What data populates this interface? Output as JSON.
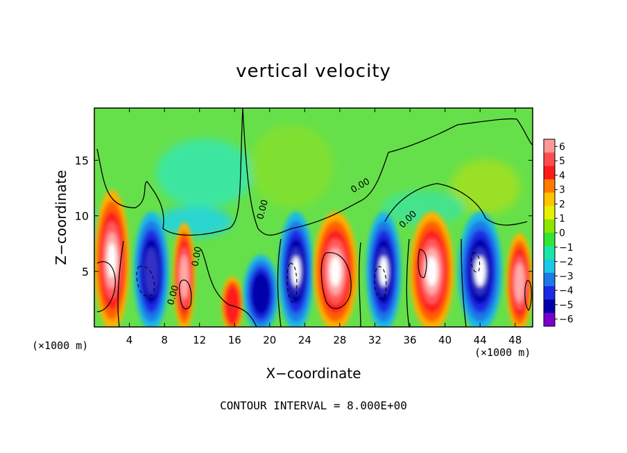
{
  "chart_data": {
    "type": "heatmap",
    "title": "vertical velocity",
    "xlabel": "X−coordinate",
    "ylabel": "Z−coordinate",
    "x_unit_label": "(×1000 m)",
    "x_ticks": [
      4,
      8,
      12,
      16,
      20,
      24,
      28,
      32,
      36,
      40,
      44,
      48
    ],
    "y_ticks": [
      5,
      10,
      15
    ],
    "xlim": [
      0,
      50
    ],
    "ylim": [
      0,
      19.7
    ],
    "contour_interval_label": "CONTOUR INTERVAL = 8.000E+00",
    "contour_labels": [
      "0.00",
      "0.00",
      "0.00",
      "0.00",
      "0.00"
    ],
    "colorbar": {
      "ticks": [
        6,
        5,
        4,
        3,
        2,
        1,
        0,
        -1,
        -2,
        -3,
        -4,
        -5,
        -6
      ],
      "tick_labels": [
        "6",
        "5",
        "4",
        "3",
        "2",
        "1",
        "0",
        "−1",
        "−2",
        "−3",
        "−4",
        "−5",
        "−6"
      ],
      "colors": [
        "#ff9999",
        "#ff4d4d",
        "#ff1a1a",
        "#ff7a00",
        "#ffc400",
        "#e6f000",
        "#8ce600",
        "#33e633",
        "#19e6a6",
        "#19c8e6",
        "#1e7ae6",
        "#1a2ae6",
        "#0000aa",
        "#7a00cc"
      ]
    },
    "cells": [
      {
        "x0": 0,
        "x1": 4,
        "w": 6.5,
        "z": 6,
        "color": "#ff1a1a"
      },
      {
        "x0": 4.5,
        "x1": 8.5,
        "w": -5,
        "z": 5,
        "color": "#1a2ae6"
      },
      {
        "x0": 9,
        "x1": 11.5,
        "w": 5,
        "z": 4.5,
        "color": "#ff1a1a"
      },
      {
        "x0": 14.5,
        "x1": 17,
        "w": 3,
        "z": 2,
        "color": "#ff7a00"
      },
      {
        "x0": 17,
        "x1": 21,
        "w": -4,
        "z": 3,
        "color": "#1e7ae6"
      },
      {
        "x0": 21,
        "x1": 25,
        "w": -6,
        "z": 5,
        "color": "#1a2ae6"
      },
      {
        "x0": 25,
        "x1": 30,
        "w": 6.5,
        "z": 5,
        "color": "#ff1a1a"
      },
      {
        "x0": 31,
        "x1": 35,
        "w": -5.5,
        "z": 5,
        "color": "#1a2ae6"
      },
      {
        "x0": 36,
        "x1": 41,
        "w": 6,
        "z": 5,
        "color": "#ff1a1a"
      },
      {
        "x0": 41.5,
        "x1": 46.5,
        "w": -5.5,
        "z": 5,
        "color": "#1a2ae6"
      },
      {
        "x0": 47,
        "x1": 50,
        "w": 5,
        "z": 4,
        "color": "#ff1a1a"
      }
    ]
  }
}
